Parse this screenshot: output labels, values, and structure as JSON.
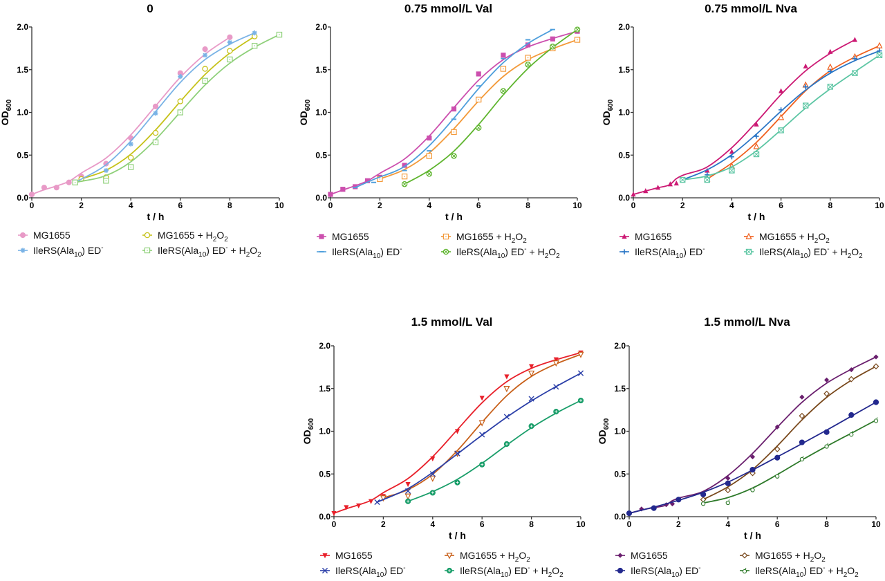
{
  "chart_data": [
    {
      "type": "line",
      "title": "0",
      "xlabel": "t / h",
      "ylabel": "OD600",
      "xlim": [
        0,
        10
      ],
      "ylim": [
        0,
        2.0
      ],
      "xticks": [
        "0",
        "2",
        "4",
        "6",
        "8",
        "10"
      ],
      "yticks": [
        "0.0",
        "0.5",
        "1.0",
        "1.5",
        "2.0"
      ],
      "grid": false,
      "legend_position": "bottom",
      "series": [
        {
          "name": "MG1655",
          "color": "#e89ac7",
          "marker": "circle-filled",
          "x": [
            0,
            0.5,
            1,
            1.5,
            2,
            3,
            4,
            5,
            6,
            7,
            8
          ],
          "y": [
            0.04,
            0.12,
            0.12,
            0.18,
            0.25,
            0.4,
            0.7,
            1.07,
            1.46,
            1.74,
            1.88
          ]
        },
        {
          "name": "MG1655 + H2O2",
          "color": "#c6c21a",
          "marker": "circle-open",
          "x": [
            2,
            3,
            4,
            5,
            6,
            7,
            8,
            9
          ],
          "y": [
            0.22,
            0.24,
            0.47,
            0.76,
            1.13,
            1.51,
            1.72,
            1.89
          ]
        },
        {
          "name": "IleRS(Ala10) ED-",
          "color": "#7ab3e6",
          "marker": "star",
          "x": [
            1.75,
            3,
            4,
            5,
            6,
            7,
            8,
            9
          ],
          "y": [
            0.18,
            0.32,
            0.63,
            0.99,
            1.42,
            1.67,
            1.82,
            1.93
          ]
        },
        {
          "name": "IleRS(Ala10) ED- + H2O2",
          "color": "#8fd07a",
          "marker": "square-open",
          "x": [
            1.75,
            3,
            4,
            5,
            6,
            7,
            8,
            9,
            10
          ],
          "y": [
            0.18,
            0.2,
            0.36,
            0.65,
            1.0,
            1.37,
            1.62,
            1.78,
            1.91
          ]
        }
      ]
    },
    {
      "type": "line",
      "title": "0.75 mmol/L Val",
      "xlabel": "t / h",
      "ylabel": "OD600",
      "xlim": [
        0,
        10
      ],
      "ylim": [
        0,
        2.0
      ],
      "xticks": [
        "0",
        "2",
        "4",
        "6",
        "8",
        "10"
      ],
      "yticks": [
        "0.0",
        "0.5",
        "1.0",
        "1.5",
        "2.0"
      ],
      "grid": false,
      "legend_position": "bottom",
      "series": [
        {
          "name": "MG1655",
          "color": "#cc4fae",
          "marker": "square-filled",
          "x": [
            0,
            0.5,
            1,
            1.5,
            2,
            3,
            4,
            5,
            6,
            7,
            8,
            9,
            10
          ],
          "y": [
            0.04,
            0.1,
            0.13,
            0.2,
            0.24,
            0.38,
            0.7,
            1.04,
            1.45,
            1.67,
            1.79,
            1.86,
            1.95
          ]
        },
        {
          "name": "MG1655 + H2O2",
          "color": "#f39a3a",
          "marker": "square-open",
          "x": [
            2,
            3,
            4,
            5,
            6,
            7,
            8,
            9,
            10
          ],
          "y": [
            0.22,
            0.25,
            0.49,
            0.77,
            1.15,
            1.51,
            1.64,
            1.75,
            1.85
          ]
        },
        {
          "name": "IleRS(Ala10) ED-",
          "color": "#4f9fdc",
          "marker": "dash",
          "x": [
            1,
            1.75,
            3,
            4,
            5,
            6,
            7,
            8,
            9
          ],
          "y": [
            0.12,
            0.18,
            0.32,
            0.55,
            0.92,
            1.31,
            1.63,
            1.85,
            1.97
          ]
        },
        {
          "name": "IleRS(Ala10) ED- + H2O2",
          "color": "#5fb52f",
          "marker": "circle-x",
          "x": [
            3,
            4,
            5,
            6,
            7,
            8,
            9,
            10
          ],
          "y": [
            0.16,
            0.28,
            0.49,
            0.82,
            1.25,
            1.56,
            1.77,
            1.97
          ]
        }
      ]
    },
    {
      "type": "line",
      "title": "0.75 mmol/L Nva",
      "xlabel": "t / h",
      "ylabel": "OD600",
      "xlim": [
        0,
        10
      ],
      "ylim": [
        0,
        2.0
      ],
      "xticks": [
        "0",
        "2",
        "4",
        "6",
        "8",
        "10"
      ],
      "yticks": [
        "0.0",
        "0.5",
        "1.0",
        "1.5",
        "2.0"
      ],
      "grid": false,
      "legend_position": "bottom",
      "series": [
        {
          "name": "MG1655",
          "color": "#cc1a74",
          "marker": "triangle-filled",
          "x": [
            0,
            0.5,
            1,
            1.5,
            1.75,
            3,
            4,
            5,
            6,
            7,
            8,
            9
          ],
          "y": [
            0.04,
            0.08,
            0.12,
            0.16,
            0.17,
            0.32,
            0.54,
            0.86,
            1.25,
            1.54,
            1.71,
            1.85
          ]
        },
        {
          "name": "MG1655 + H2O2",
          "color": "#f0601e",
          "marker": "triangle-open",
          "x": [
            3,
            4,
            5,
            6,
            7,
            8,
            9,
            10
          ],
          "y": [
            0.22,
            0.37,
            0.6,
            0.94,
            1.32,
            1.53,
            1.65,
            1.78
          ]
        },
        {
          "name": "IleRS(Ala10) ED-",
          "color": "#2a76c6",
          "marker": "plus",
          "x": [
            2,
            3,
            4,
            5,
            6,
            7,
            8,
            9,
            10
          ],
          "y": [
            0.21,
            0.27,
            0.48,
            0.72,
            1.03,
            1.3,
            1.48,
            1.63,
            1.72
          ]
        },
        {
          "name": "IleRS(Ala10) ED- + H2O2",
          "color": "#5dc6a4",
          "marker": "square-x",
          "x": [
            2,
            3,
            4,
            5,
            6,
            7,
            8,
            9,
            10
          ],
          "y": [
            0.21,
            0.21,
            0.32,
            0.51,
            0.79,
            1.08,
            1.3,
            1.46,
            1.67
          ]
        }
      ]
    },
    {
      "type": "line",
      "title": "1.5 mmol/L Val",
      "xlabel": "t / h",
      "ylabel": "OD600",
      "xlim": [
        0,
        10
      ],
      "ylim": [
        0,
        2.0
      ],
      "xticks": [
        "0",
        "2",
        "4",
        "6",
        "8",
        "10"
      ],
      "yticks": [
        "0.0",
        "0.5",
        "1.0",
        "1.5",
        "2.0"
      ],
      "grid": false,
      "legend_position": "bottom",
      "series": [
        {
          "name": "MG1655",
          "color": "#e8202a",
          "marker": "triangle-down-filled",
          "x": [
            0,
            0.5,
            1,
            1.5,
            2,
            3,
            4,
            5,
            6,
            7,
            8,
            9,
            10
          ],
          "y": [
            0.04,
            0.11,
            0.13,
            0.18,
            0.24,
            0.38,
            0.68,
            1.0,
            1.39,
            1.64,
            1.76,
            1.84,
            1.92
          ]
        },
        {
          "name": "MG1655 + H2O2",
          "color": "#c8601a",
          "marker": "triangle-down-open",
          "x": [
            2,
            3,
            4,
            5,
            6,
            7,
            8,
            9,
            10
          ],
          "y": [
            0.22,
            0.24,
            0.45,
            0.74,
            1.1,
            1.5,
            1.68,
            1.8,
            1.9
          ]
        },
        {
          "name": "IleRS(Ala10) ED-",
          "color": "#2b3fa8",
          "marker": "x",
          "x": [
            1.75,
            3,
            4,
            5,
            6,
            7,
            8,
            9,
            10
          ],
          "y": [
            0.17,
            0.3,
            0.5,
            0.74,
            0.96,
            1.17,
            1.38,
            1.52,
            1.68
          ]
        },
        {
          "name": "IleRS(Ala10) ED- + H2O2",
          "color": "#1a9e6a",
          "marker": "circle-star",
          "x": [
            3,
            4,
            5,
            6,
            7,
            8,
            9,
            10
          ],
          "y": [
            0.18,
            0.28,
            0.4,
            0.61,
            0.85,
            1.06,
            1.23,
            1.36
          ]
        }
      ]
    },
    {
      "type": "line",
      "title": "1.5 mmol/L Nva",
      "xlabel": "t / h",
      "ylabel": "OD600",
      "xlim": [
        0,
        10
      ],
      "ylim": [
        0,
        2.0
      ],
      "xticks": [
        "0",
        "2",
        "4",
        "6",
        "8",
        "10"
      ],
      "yticks": [
        "0.0",
        "0.5",
        "1.0",
        "1.5",
        "2.0"
      ],
      "grid": false,
      "legend_position": "bottom",
      "series": [
        {
          "name": "MG1655",
          "color": "#6a1f6e",
          "marker": "diamond-filled",
          "x": [
            0,
            0.5,
            1,
            1.5,
            1.75,
            3,
            4,
            5,
            6,
            7,
            8,
            9,
            10
          ],
          "y": [
            0.04,
            0.09,
            0.1,
            0.14,
            0.15,
            0.25,
            0.45,
            0.7,
            1.05,
            1.4,
            1.6,
            1.72,
            1.87
          ]
        },
        {
          "name": "MG1655 + H2O2",
          "color": "#7a4a1e",
          "marker": "diamond-open",
          "x": [
            3,
            4,
            5,
            6,
            7,
            8,
            9,
            10
          ],
          "y": [
            0.2,
            0.31,
            0.51,
            0.79,
            1.18,
            1.44,
            1.61,
            1.76
          ]
        },
        {
          "name": "IleRS(Ala10) ED-",
          "color": "#23298e",
          "marker": "circle-filled",
          "x": [
            0,
            1,
            2,
            3,
            4,
            5,
            6,
            7,
            8,
            9,
            10
          ],
          "y": [
            0.04,
            0.1,
            0.2,
            0.26,
            0.39,
            0.55,
            0.69,
            0.87,
            0.99,
            1.19,
            1.34
          ]
        },
        {
          "name": "IleRS(Ala10) ED- + H2O2",
          "color": "#2e7a2a",
          "marker": "circle-tick",
          "x": [
            3,
            4,
            5,
            6,
            7,
            8,
            9,
            10
          ],
          "y": [
            0.16,
            0.17,
            0.32,
            0.48,
            0.68,
            0.83,
            0.97,
            1.13
          ]
        }
      ]
    }
  ]
}
